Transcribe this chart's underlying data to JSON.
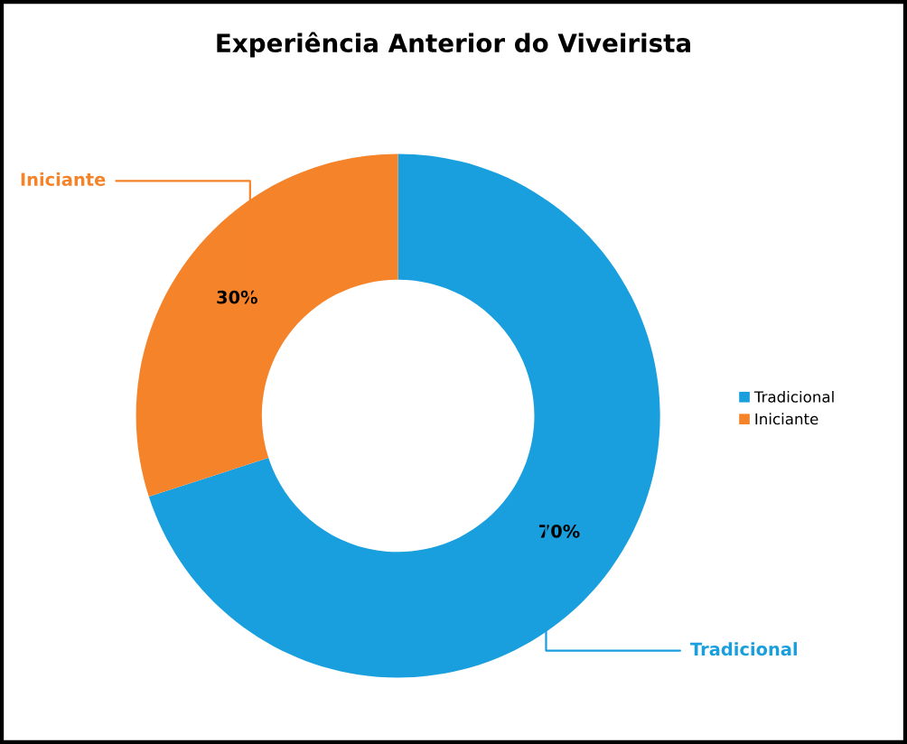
{
  "chart_data": {
    "type": "donut",
    "title": "Experiência Anterior do Viveirista",
    "categories": [
      "Tradicional",
      "Iniciante"
    ],
    "values": [
      70,
      30
    ],
    "colors": [
      "#1a9fde",
      "#f5832a"
    ],
    "value_labels": [
      "70%",
      "30%"
    ],
    "legend": "right"
  }
}
